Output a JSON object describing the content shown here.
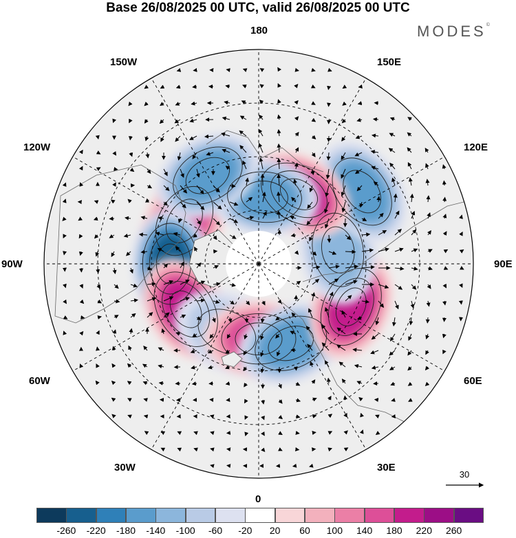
{
  "title": "Base 26/08/2025 00 UTC, valid 26/08/2025 00 UTC",
  "brand": "MODES",
  "brand_mark": "©",
  "longitude_labels": {
    "lon_180": "180",
    "lon_150e": "150E",
    "lon_120e": "120E",
    "lon_90e": "90E",
    "lon_60e": "60E",
    "lon_30e": "30E",
    "lon_0": "0",
    "lon_30w": "30W",
    "lon_60w": "60W",
    "lon_90w": "90W",
    "lon_120w": "120W",
    "lon_150w": "150W"
  },
  "reference_vector": {
    "value": "30"
  },
  "colorbar": {
    "ticks": [
      "-260",
      "-220",
      "-180",
      "-140",
      "-100",
      "-60",
      "-20",
      "20",
      "60",
      "100",
      "140",
      "180",
      "220",
      "260"
    ],
    "colors": [
      "#0d3a5c",
      "#175f8e",
      "#2f80b8",
      "#5a9ccc",
      "#8cb6dc",
      "#b9cbe6",
      "#dde1f0",
      "#ffffff",
      "#f8d6d8",
      "#f3b1bd",
      "#eb7fa6",
      "#dd4f98",
      "#c31c8c",
      "#9c0e86",
      "#6a0d83"
    ]
  },
  "chart_data": {
    "type": "map",
    "projection": "north-polar-stereographic",
    "field": "geopotential height anomaly with wind vectors",
    "colorbar_bounds": [
      -260,
      -220,
      -180,
      -140,
      -100,
      -60,
      -20,
      20,
      60,
      100,
      140,
      180,
      220,
      260
    ],
    "anomaly_centers": [
      {
        "name": "positive-anomaly-hudson-bay",
        "lon": -120,
        "lat": 58,
        "value": 190
      },
      {
        "name": "negative-anomaly-baffin",
        "lon": -90,
        "lat": 57,
        "value": -240
      },
      {
        "name": "positive-anomaly-labrador",
        "lon": -58,
        "lat": 58,
        "value": 200
      },
      {
        "name": "negative-anomaly-greenland-sea",
        "lon": -25,
        "lat": 62,
        "value": -110
      },
      {
        "name": "positive-anomaly-norway",
        "lon": 0,
        "lat": 62,
        "value": 180
      },
      {
        "name": "negative-anomaly-scandinavia",
        "lon": 22,
        "lat": 58,
        "value": -170
      },
      {
        "name": "positive-anomaly-west-siberia",
        "lon": 65,
        "lat": 52,
        "value": 230
      },
      {
        "name": "negative-anomaly-central-siberia",
        "lon": 100,
        "lat": 60,
        "value": -130
      },
      {
        "name": "negative-anomaly-kamchatka",
        "lon": 125,
        "lat": 43,
        "value": -170
      },
      {
        "name": "positive-anomaly-east-siberia",
        "lon": 150,
        "lat": 60,
        "value": 230
      },
      {
        "name": "negative-anomaly-bering",
        "lon": 175,
        "lat": 65,
        "value": -190
      },
      {
        "name": "negative-anomaly-gulf-of-alaska",
        "lon": -150,
        "lat": 52,
        "value": -180
      }
    ]
  }
}
